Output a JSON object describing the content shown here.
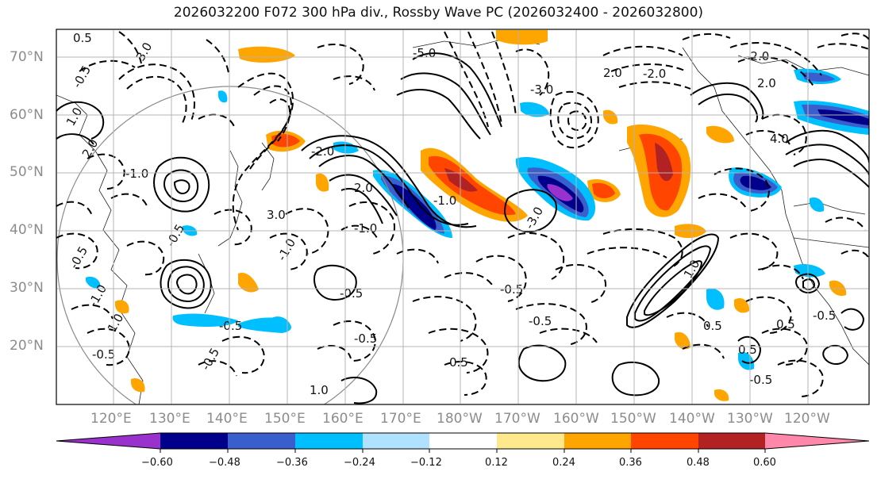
{
  "title": "2026032200 F072 300 hPa div., Rossby Wave PC (2026032400 - 2026032800)",
  "latitude_labels": [
    {
      "label": "70°N",
      "value": 70
    },
    {
      "label": "60°N",
      "value": 60
    },
    {
      "label": "50°N",
      "value": 50
    },
    {
      "label": "40°N",
      "value": 40
    },
    {
      "label": "30°N",
      "value": 30
    },
    {
      "label": "20°N",
      "value": 20
    }
  ],
  "longitude_labels": [
    {
      "label": "120°E",
      "value": 120
    },
    {
      "label": "130°E",
      "value": 130
    },
    {
      "label": "140°E",
      "value": 140
    },
    {
      "label": "150°E",
      "value": 150
    },
    {
      "label": "160°E",
      "value": 160
    },
    {
      "label": "170°E",
      "value": 170
    },
    {
      "label": "180°W",
      "value": 180
    },
    {
      "label": "170°W",
      "value": 190
    },
    {
      "label": "160°W",
      "value": 200
    },
    {
      "label": "150°W",
      "value": 210
    },
    {
      "label": "140°W",
      "value": 220
    },
    {
      "label": "130°W",
      "value": 230
    },
    {
      "label": "120°W",
      "value": 240
    }
  ],
  "map_extent": {
    "lon_min": 113,
    "lon_max": 250,
    "lat_min": 10,
    "lat_max": 75
  },
  "colorbar": {
    "ticks": [
      "−0.60",
      "−0.48",
      "−0.36",
      "−0.24",
      "−0.12",
      "0.12",
      "0.24",
      "0.36",
      "0.48",
      "0.60"
    ],
    "colors": [
      "#9932cc",
      "#00008b",
      "#3a5fcd",
      "#00bfff",
      "#b0e2ff",
      "#ffffff",
      "#ffe98c",
      "#ffa500",
      "#ff4500",
      "#b22222",
      "#ff88aa"
    ],
    "extend": "both"
  },
  "shading_colors": {
    "neg_strong": "#9932cc",
    "neg_dark": "#00008b",
    "neg_mid": "#3a5fcd",
    "neg_light": "#00bfff",
    "neg_pale": "#b0e2ff",
    "pos_pale": "#ffe98c",
    "pos_light": "#ffa500",
    "pos_mid": "#ff4500",
    "pos_dark": "#b22222"
  },
  "contour_labels": [
    "0.5",
    "3.0",
    "-0.5",
    "1.0",
    "2.0",
    "-1.0",
    "-5.0",
    "-3.0",
    "3.0",
    "-2.0",
    "2.0",
    "-1.0",
    "2.0",
    "-1.0",
    "-3.0",
    "-0.5",
    "-0.5",
    "-1.0",
    "-0.5",
    "-1.0",
    "1.0",
    "-0.5",
    "-0.5",
    "-0.5",
    "-0.5",
    "1.0",
    "-0.5",
    "0.5",
    "-0.5",
    "0.5",
    "0.5",
    "0.5",
    "-0.5",
    "-0.5",
    "4.0",
    "-2.0",
    "2.0",
    "-2.0",
    "1.0"
  ]
}
